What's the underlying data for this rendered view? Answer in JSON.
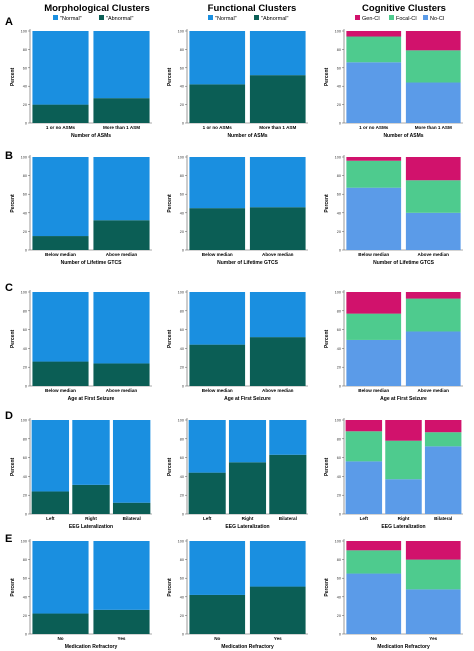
{
  "columns": [
    {
      "title": "Morphological Clusters",
      "legend": [
        "\"Normal\"",
        "\"Abnormal\""
      ]
    },
    {
      "title": "Functional Clusters",
      "legend": [
        "\"Normal\"",
        "\"Abnormal\""
      ]
    },
    {
      "title": "Cognitive Clusters",
      "legend": [
        "Gen-CI",
        "Focal-CI",
        "No-CI"
      ]
    }
  ],
  "row_labels": [
    "A",
    "B",
    "C",
    "D",
    "E"
  ],
  "colors": {
    "normal": "#1a8fe0",
    "abnormal": "#0b5e55",
    "gen_ci": "#d1126c",
    "focal_ci": "#4ecb8e",
    "no_ci": "#5b9be8"
  },
  "chart_data": [
    {
      "type": "bar",
      "stacked": true,
      "row": "A",
      "column": "Morphological Clusters",
      "categories": [
        "1 or no ASMs",
        "More than 1 ASM"
      ],
      "series": [
        {
          "name": "\"Abnormal\"",
          "values": [
            20,
            27
          ]
        },
        {
          "name": "\"Normal\"",
          "values": [
            80,
            73
          ]
        }
      ],
      "xlabel": "Number of ASMs",
      "ylabel": "Percent",
      "ylim": [
        0,
        100
      ],
      "yticks": [
        0,
        20,
        40,
        60,
        80,
        100
      ]
    },
    {
      "type": "bar",
      "stacked": true,
      "row": "A",
      "column": "Functional Clusters",
      "categories": [
        "1 or no ASMs",
        "More than 1 ASM"
      ],
      "series": [
        {
          "name": "\"Abnormal\"",
          "values": [
            42,
            52
          ]
        },
        {
          "name": "\"Normal\"",
          "values": [
            58,
            48
          ]
        }
      ],
      "xlabel": "Number of ASMs",
      "ylabel": "Percent",
      "ylim": [
        0,
        100
      ],
      "yticks": [
        0,
        20,
        40,
        60,
        80,
        100
      ]
    },
    {
      "type": "bar",
      "stacked": true,
      "row": "A",
      "column": "Cognitive Clusters",
      "categories": [
        "1 or no ASMs",
        "More than 1 ASM"
      ],
      "series": [
        {
          "name": "No-CI",
          "values": [
            66,
            44
          ]
        },
        {
          "name": "Focal-CI",
          "values": [
            28,
            35
          ]
        },
        {
          "name": "Gen-CI",
          "values": [
            6,
            21
          ]
        }
      ],
      "xlabel": "Number of ASMs",
      "ylabel": "Percent",
      "ylim": [
        0,
        100
      ],
      "yticks": [
        0,
        20,
        40,
        60,
        80,
        100
      ]
    },
    {
      "type": "bar",
      "stacked": true,
      "row": "B",
      "column": "Morphological Clusters",
      "categories": [
        "Below median",
        "Above median"
      ],
      "series": [
        {
          "name": "\"Abnormal\"",
          "values": [
            15,
            32
          ]
        },
        {
          "name": "\"Normal\"",
          "values": [
            85,
            68
          ]
        }
      ],
      "xlabel": "Number of Lifetime GTCS",
      "ylabel": "Percent",
      "ylim": [
        0,
        100
      ],
      "yticks": [
        0,
        20,
        40,
        60,
        80,
        100
      ]
    },
    {
      "type": "bar",
      "stacked": true,
      "row": "B",
      "column": "Functional Clusters",
      "categories": [
        "Below median",
        "Above median"
      ],
      "series": [
        {
          "name": "\"Abnormal\"",
          "values": [
            45,
            46
          ]
        },
        {
          "name": "\"Normal\"",
          "values": [
            55,
            54
          ]
        }
      ],
      "xlabel": "Number of Lifetime GTCS",
      "ylabel": "Percent",
      "ylim": [
        0,
        100
      ],
      "yticks": [
        0,
        20,
        40,
        60,
        80,
        100
      ]
    },
    {
      "type": "bar",
      "stacked": true,
      "row": "B",
      "column": "Cognitive Clusters",
      "categories": [
        "Below median",
        "Above median"
      ],
      "series": [
        {
          "name": "No-CI",
          "values": [
            67,
            40
          ]
        },
        {
          "name": "Focal-CI",
          "values": [
            29,
            35
          ]
        },
        {
          "name": "Gen-CI",
          "values": [
            4,
            25
          ]
        }
      ],
      "xlabel": "Number of Lifetime GTCS",
      "ylabel": "Percent",
      "ylim": [
        0,
        100
      ],
      "yticks": [
        0,
        20,
        40,
        60,
        80,
        100
      ]
    },
    {
      "type": "bar",
      "stacked": true,
      "row": "C",
      "column": "Morphological Clusters",
      "categories": [
        "Below median",
        "Above median"
      ],
      "series": [
        {
          "name": "\"Abnormal\"",
          "values": [
            26,
            24
          ]
        },
        {
          "name": "\"Normal\"",
          "values": [
            74,
            76
          ]
        }
      ],
      "xlabel": "Age at First Seizure",
      "ylabel": "Percent",
      "ylim": [
        0,
        100
      ],
      "yticks": [
        0,
        20,
        40,
        60,
        80,
        100
      ]
    },
    {
      "type": "bar",
      "stacked": true,
      "row": "C",
      "column": "Functional Clusters",
      "categories": [
        "Below median",
        "Above median"
      ],
      "series": [
        {
          "name": "\"Abnormal\"",
          "values": [
            44,
            52
          ]
        },
        {
          "name": "\"Normal\"",
          "values": [
            56,
            48
          ]
        }
      ],
      "xlabel": "Age at First Seizure",
      "ylabel": "Percent",
      "ylim": [
        0,
        100
      ],
      "yticks": [
        0,
        20,
        40,
        60,
        80,
        100
      ]
    },
    {
      "type": "bar",
      "stacked": true,
      "row": "C",
      "column": "Cognitive Clusters",
      "categories": [
        "Below median",
        "Above median"
      ],
      "series": [
        {
          "name": "No-CI",
          "values": [
            49,
            58
          ]
        },
        {
          "name": "Focal-CI",
          "values": [
            28,
            35
          ]
        },
        {
          "name": "Gen-CI",
          "values": [
            23,
            7
          ]
        }
      ],
      "xlabel": "Age at First Seizure",
      "ylabel": "Percent",
      "ylim": [
        0,
        100
      ],
      "yticks": [
        0,
        20,
        40,
        60,
        80,
        100
      ]
    },
    {
      "type": "bar",
      "stacked": true,
      "row": "D",
      "column": "Morphological Clusters",
      "categories": [
        "Left",
        "Right",
        "Bilateral"
      ],
      "series": [
        {
          "name": "\"Abnormal\"",
          "values": [
            24,
            31,
            12
          ]
        },
        {
          "name": "\"Normal\"",
          "values": [
            76,
            69,
            88
          ]
        }
      ],
      "xlabel": "EEG Lateralization",
      "ylabel": "Percent",
      "ylim": [
        0,
        100
      ],
      "yticks": [
        0,
        20,
        40,
        60,
        80,
        100
      ]
    },
    {
      "type": "bar",
      "stacked": true,
      "row": "D",
      "column": "Functional Clusters",
      "categories": [
        "Left",
        "Right",
        "Bilateral"
      ],
      "series": [
        {
          "name": "\"Abnormal\"",
          "values": [
            44,
            55,
            63
          ]
        },
        {
          "name": "\"Normal\"",
          "values": [
            56,
            45,
            37
          ]
        }
      ],
      "xlabel": "EEG Lateralization",
      "ylabel": "Percent",
      "ylim": [
        0,
        100
      ],
      "yticks": [
        0,
        20,
        40,
        60,
        80,
        100
      ]
    },
    {
      "type": "bar",
      "stacked": true,
      "row": "D",
      "column": "Cognitive Clusters",
      "categories": [
        "Left",
        "Right",
        "Bilateral"
      ],
      "series": [
        {
          "name": "No-CI",
          "values": [
            56,
            37,
            72
          ]
        },
        {
          "name": "Focal-CI",
          "values": [
            32,
            41,
            15
          ]
        },
        {
          "name": "Gen-CI",
          "values": [
            12,
            22,
            13
          ]
        }
      ],
      "xlabel": "EEG Lateralization",
      "ylabel": "Percent",
      "ylim": [
        0,
        100
      ],
      "yticks": [
        0,
        20,
        40,
        60,
        80,
        100
      ]
    },
    {
      "type": "bar",
      "stacked": true,
      "row": "E",
      "column": "Morphological Clusters",
      "categories": [
        "No",
        "Yes"
      ],
      "series": [
        {
          "name": "\"Abnormal\"",
          "values": [
            22,
            26
          ]
        },
        {
          "name": "\"Normal\"",
          "values": [
            78,
            74
          ]
        }
      ],
      "xlabel": "Medication Refractory",
      "ylabel": "Percent",
      "ylim": [
        0,
        100
      ],
      "yticks": [
        0,
        20,
        40,
        60,
        80,
        100
      ]
    },
    {
      "type": "bar",
      "stacked": true,
      "row": "E",
      "column": "Functional Clusters",
      "categories": [
        "No",
        "Yes"
      ],
      "series": [
        {
          "name": "\"Abnormal\"",
          "values": [
            42,
            51
          ]
        },
        {
          "name": "\"Normal\"",
          "values": [
            58,
            49
          ]
        }
      ],
      "xlabel": "Medication Refractory",
      "ylabel": "Percent",
      "ylim": [
        0,
        100
      ],
      "yticks": [
        0,
        20,
        40,
        60,
        80,
        100
      ]
    },
    {
      "type": "bar",
      "stacked": true,
      "row": "E",
      "column": "Cognitive Clusters",
      "categories": [
        "No",
        "Yes"
      ],
      "series": [
        {
          "name": "No-CI",
          "values": [
            65,
            48
          ]
        },
        {
          "name": "Focal-CI",
          "values": [
            25,
            32
          ]
        },
        {
          "name": "Gen-CI",
          "values": [
            10,
            20
          ]
        }
      ],
      "xlabel": "Medication Refractory",
      "ylabel": "Percent",
      "ylim": [
        0,
        100
      ],
      "yticks": [
        0,
        20,
        40,
        60,
        80,
        100
      ]
    }
  ]
}
